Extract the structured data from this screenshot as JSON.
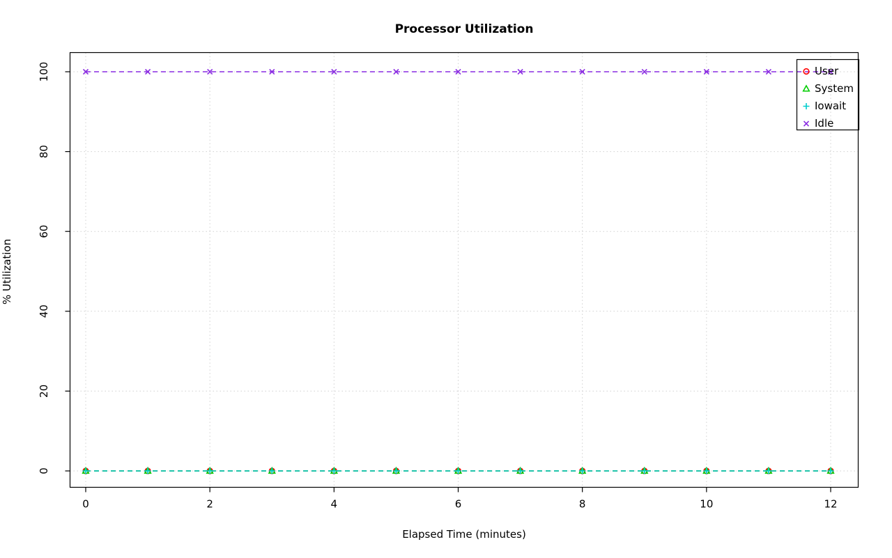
{
  "title": "Processor Utilization",
  "chart_data": {
    "type": "line",
    "title": "Processor Utilization",
    "xlabel": "Elapsed Time (minutes)",
    "ylabel": "% Utilization",
    "x": [
      0,
      1,
      2,
      3,
      4,
      5,
      6,
      7,
      8,
      9,
      10,
      11,
      12
    ],
    "xlim": [
      0,
      12
    ],
    "ylim": [
      0,
      100
    ],
    "xticks": [
      0,
      2,
      4,
      6,
      8,
      10,
      12
    ],
    "yticks": [
      0,
      20,
      40,
      60,
      80,
      100
    ],
    "grid": true,
    "grid_style": "dotted",
    "line_style": "dashed",
    "legend_position": "top-right",
    "series": [
      {
        "name": "User",
        "color": "#FF0000",
        "marker": "circle",
        "values": [
          0,
          0,
          0,
          0,
          0,
          0,
          0,
          0,
          0,
          0,
          0,
          0,
          0
        ]
      },
      {
        "name": "System",
        "color": "#00CD00",
        "marker": "triangle",
        "values": [
          0,
          0,
          0,
          0,
          0,
          0,
          0,
          0,
          0,
          0,
          0,
          0,
          0
        ]
      },
      {
        "name": "Iowait",
        "color": "#00CDCD",
        "marker": "plus",
        "values": [
          0,
          0,
          0,
          0,
          0,
          0,
          0,
          0,
          0,
          0,
          0,
          0,
          0
        ]
      },
      {
        "name": "Idle",
        "color": "#8A2BE2",
        "marker": "x",
        "values": [
          100,
          100,
          100,
          100,
          100,
          100,
          100,
          100,
          100,
          100,
          100,
          100,
          100
        ]
      }
    ]
  }
}
